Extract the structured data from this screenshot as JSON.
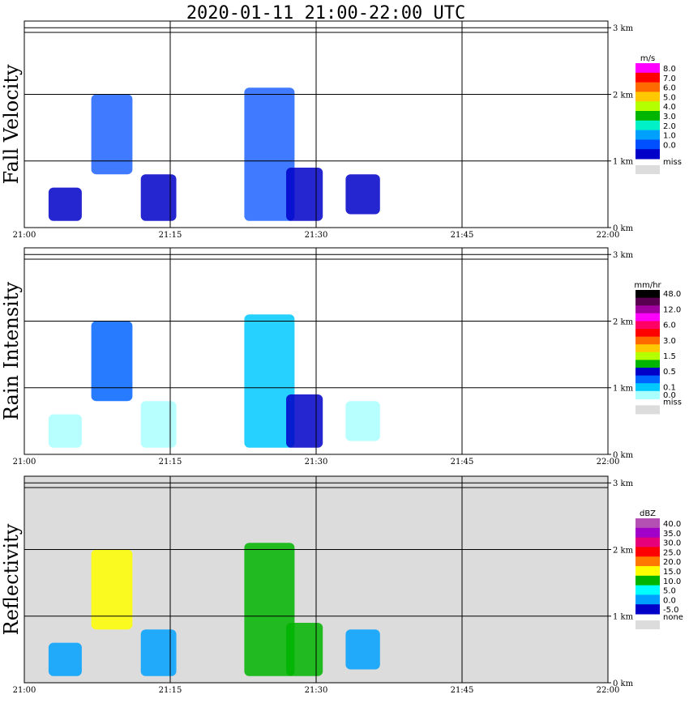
{
  "title": "2020-01-11   21:00-22:00 UTC",
  "x_ticks": [
    "21:00",
    "21:15",
    "21:30",
    "21:45",
    "22:00"
  ],
  "y_ticks": [
    "0 km",
    "1 km",
    "2 km",
    "3 km"
  ],
  "chart_data": [
    {
      "type": "heatmap",
      "ylabel": "Fall Velocity",
      "xlim": [
        "21:00",
        "22:00"
      ],
      "ylim": [
        0,
        3.1
      ],
      "background": "#ffffff",
      "colorbar": {
        "unit": "m/s",
        "labels": [
          "8.0",
          "7.0",
          "6.0",
          "5.0",
          "4.0",
          "3.0",
          "2.0",
          "1.0",
          "0.0"
        ],
        "colors": [
          "#ff00ff",
          "#ff0000",
          "#ff6a00",
          "#ffc800",
          "#b4ff00",
          "#00b400",
          "#00f0c8",
          "#00a0ff",
          "#0050ff",
          "#0000c8"
        ],
        "miss_label": "miss"
      },
      "echoes": [
        {
          "t": 21.07,
          "h0": 0.1,
          "h1": 0.6,
          "color": "#0000c8"
        },
        {
          "t": 21.15,
          "h0": 0.8,
          "h1": 2.0,
          "color": "#1e64ff"
        },
        {
          "t": 21.23,
          "h0": 0.1,
          "h1": 0.8,
          "color": "#0000c8"
        },
        {
          "t": 21.42,
          "h0": 0.1,
          "h1": 2.1,
          "color": "#1e64ff"
        },
        {
          "t": 21.48,
          "h0": 0.1,
          "h1": 0.9,
          "color": "#0000c8"
        },
        {
          "t": 21.58,
          "h0": 0.2,
          "h1": 0.8,
          "color": "#0000c8"
        }
      ]
    },
    {
      "type": "heatmap",
      "ylabel": "Rain Intensity",
      "xlim": [
        "21:00",
        "22:00"
      ],
      "ylim": [
        0,
        3.1
      ],
      "background": "#ffffff",
      "colorbar": {
        "unit": "mm/hr",
        "labels": [
          "48.0",
          "",
          "12.0",
          "",
          "6.0",
          "",
          "3.0",
          "",
          "1.5",
          "",
          "0.5",
          "",
          "0.1",
          "0.0"
        ],
        "colors": [
          "#000000",
          "#5a0050",
          "#a000a0",
          "#ff00ff",
          "#ff0064",
          "#ff0000",
          "#ff6a00",
          "#ffc800",
          "#b4ff00",
          "#00b400",
          "#0000c8",
          "#0064ff",
          "#00c8ff",
          "#aaffff"
        ],
        "miss_label": "miss"
      },
      "echoes": [
        {
          "t": 21.07,
          "h0": 0.1,
          "h1": 0.6,
          "color": "#aaffff"
        },
        {
          "t": 21.15,
          "h0": 0.8,
          "h1": 2.0,
          "color": "#0064ff"
        },
        {
          "t": 21.23,
          "h0": 0.1,
          "h1": 0.8,
          "color": "#aaffff"
        },
        {
          "t": 21.42,
          "h0": 0.1,
          "h1": 2.1,
          "color": "#00c8ff"
        },
        {
          "t": 21.48,
          "h0": 0.1,
          "h1": 0.9,
          "color": "#0000c8"
        },
        {
          "t": 21.58,
          "h0": 0.2,
          "h1": 0.8,
          "color": "#aaffff"
        }
      ]
    },
    {
      "type": "heatmap",
      "ylabel": "Reflectivity",
      "xlim": [
        "21:00",
        "22:00"
      ],
      "ylim": [
        0,
        3.1
      ],
      "background": "#dcdcdc",
      "colorbar": {
        "unit": "dBZ",
        "labels": [
          "40.0",
          "35.0",
          "30.0",
          "25.0",
          "20.0",
          "15.0",
          "10.0",
          "5.0",
          "0.0",
          "-5.0"
        ],
        "colors": [
          "#b450b4",
          "#a000c8",
          "#e6007a",
          "#ff0000",
          "#ff7800",
          "#ffff00",
          "#00b400",
          "#00ffff",
          "#00a0ff",
          "#0000c8"
        ],
        "miss_label": "none"
      },
      "echoes": [
        {
          "t": 21.07,
          "h0": 0.1,
          "h1": 0.6,
          "color": "#00a0ff"
        },
        {
          "t": 21.15,
          "h0": 0.8,
          "h1": 2.0,
          "color": "#ffff00"
        },
        {
          "t": 21.23,
          "h0": 0.1,
          "h1": 0.8,
          "color": "#00a0ff"
        },
        {
          "t": 21.42,
          "h0": 0.1,
          "h1": 2.1,
          "color": "#00b400"
        },
        {
          "t": 21.48,
          "h0": 0.1,
          "h1": 0.9,
          "color": "#00b400"
        },
        {
          "t": 21.58,
          "h0": 0.2,
          "h1": 0.8,
          "color": "#00a0ff"
        }
      ]
    }
  ]
}
